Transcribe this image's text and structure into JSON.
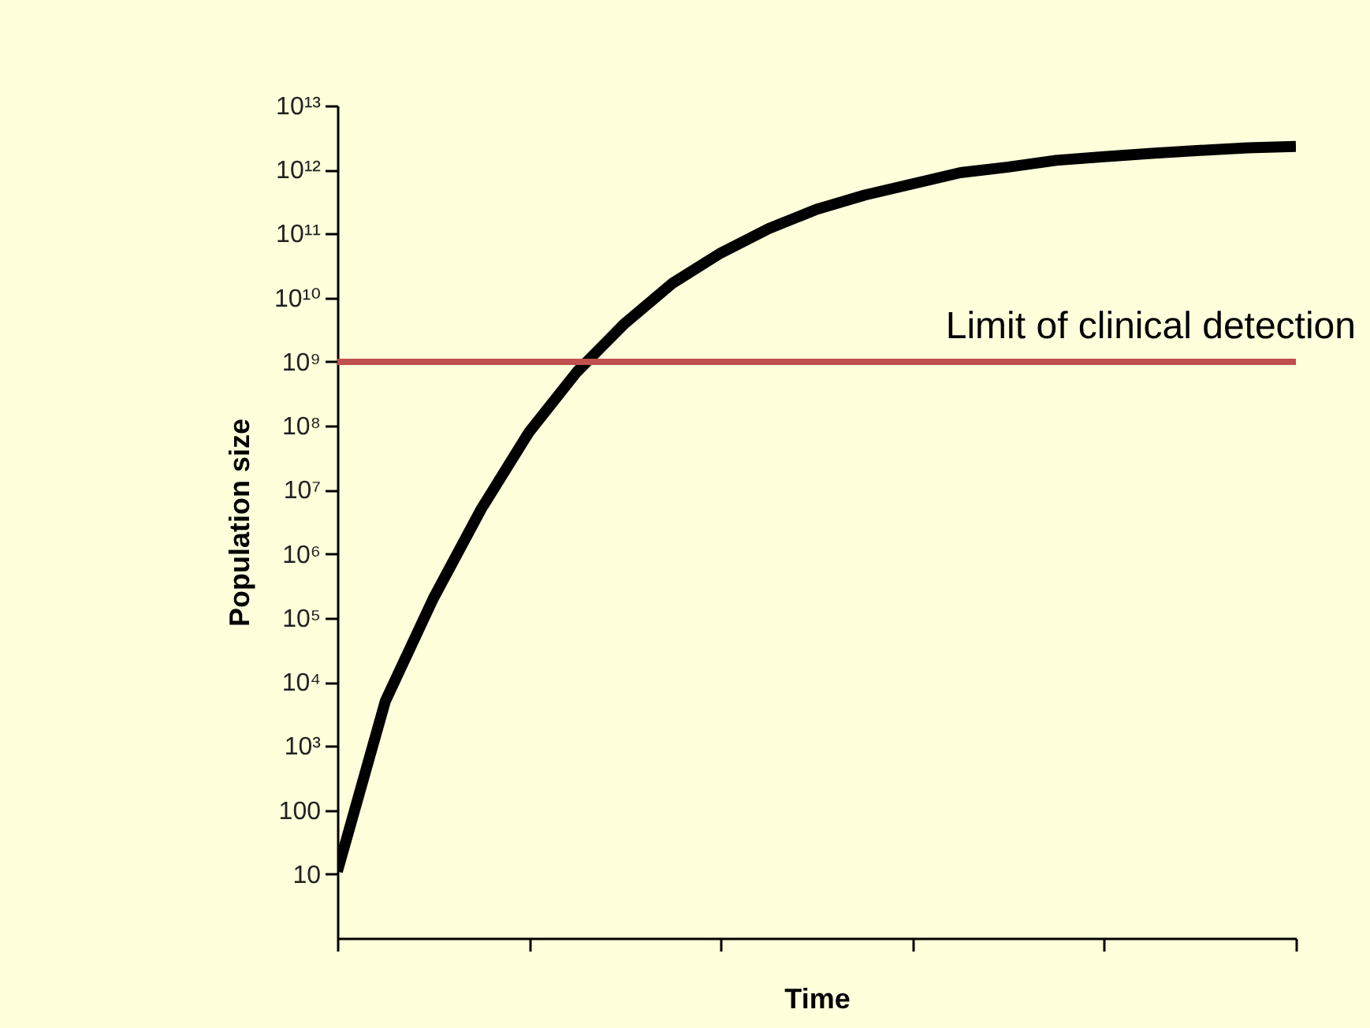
{
  "chart_data": {
    "type": "line",
    "xlabel": "Time",
    "ylabel": "Population size",
    "log": "y",
    "grid": false,
    "categories": [
      null,
      null,
      null,
      null,
      null,
      null,
      null,
      null,
      null,
      null,
      null,
      null,
      null,
      null,
      null,
      null,
      null,
      null,
      null,
      null,
      null
    ],
    "ylim": [
      1,
      10000000000000
    ],
    "yticks": [
      10,
      100,
      {
        "value": 1000,
        "label": "10³"
      },
      {
        "value": 10000,
        "label": "10⁴"
      },
      {
        "value": 100000,
        "label": "10⁵"
      },
      {
        "value": 1000000,
        "label": "10⁶"
      },
      {
        "value": 10000000,
        "label": "10⁷"
      },
      {
        "value": 100000000,
        "label": "10⁸"
      },
      {
        "value": 1000000000,
        "label": "10⁹"
      },
      {
        "value": 10000000000,
        "label": "10¹⁰"
      },
      {
        "value": 100000000000,
        "label": "10¹¹"
      },
      {
        "value": 1000000000000,
        "label": "10¹²"
      },
      {
        "value": 10000000000000,
        "label": "10¹³"
      }
    ],
    "series": [
      {
        "color": "#000000",
        "values": [
          11,
          5000,
          200000,
          5000000,
          80000000,
          700000000,
          4000000000,
          17000000000,
          50000000000,
          120000000000,
          240000000000,
          400000000000,
          600000000000,
          900000000000,
          1100000000000,
          1400000000000,
          1600000000000,
          1800000000000,
          2000000000000,
          2200000000000,
          2300000000000
        ]
      }
    ],
    "ref_lines": [
      {
        "axis": "y",
        "value": 1000000000,
        "label": "Limit of clinical detection",
        "color": "#c0504d"
      }
    ]
  }
}
